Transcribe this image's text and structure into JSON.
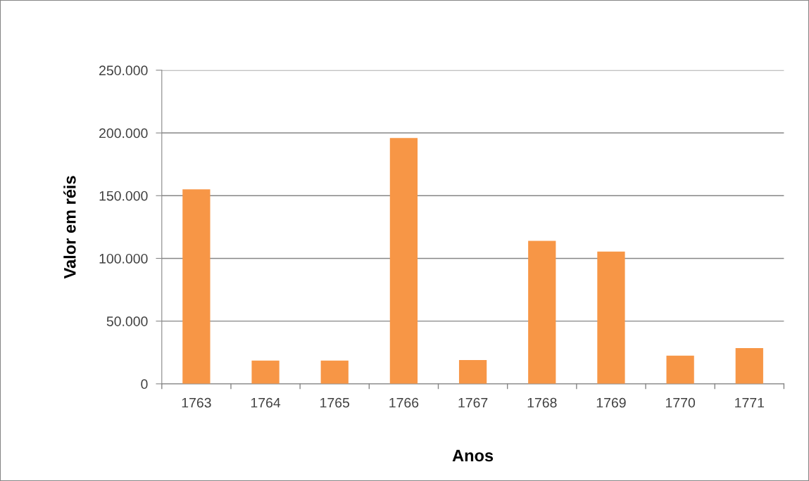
{
  "chart_data": {
    "type": "bar",
    "xlabel": "Anos",
    "ylabel": "Valor em réis",
    "categories": [
      "1763",
      "1764",
      "1765",
      "1766",
      "1767",
      "1768",
      "1769",
      "1770",
      "1771"
    ],
    "values": [
      155000,
      18500,
      18500,
      196000,
      19000,
      114000,
      105500,
      22500,
      28500
    ],
    "color": "#f79646",
    "ylim": [
      0,
      250000
    ],
    "yticks": [
      {
        "value": 0,
        "label": "0"
      },
      {
        "value": 50000,
        "label": "50.000"
      },
      {
        "value": 100000,
        "label": "100.000"
      },
      {
        "value": 150000,
        "label": "150.000"
      },
      {
        "value": 200000,
        "label": "200.000"
      },
      {
        "value": 250000,
        "label": "250.000"
      }
    ],
    "grid": "y",
    "legend": false
  }
}
